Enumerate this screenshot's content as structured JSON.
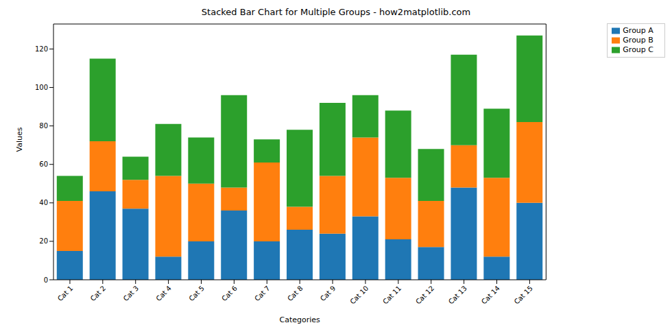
{
  "chart_data": {
    "type": "bar",
    "title": "Stacked Bar Chart for Multiple Groups - how2matplotlib.com",
    "x_label": "Categories",
    "y_label": "Values",
    "categories": [
      "Cat 1",
      "Cat 2",
      "Cat 3",
      "Cat 4",
      "Cat 5",
      "Cat 6",
      "Cat 7",
      "Cat 8",
      "Cat 9",
      "Cat 10",
      "Cat 11",
      "Cat 12",
      "Cat 13",
      "Cat 14",
      "Cat 15"
    ],
    "series": [
      {
        "name": "Group A",
        "color": "#1f77b4",
        "values": [
          15,
          46,
          37,
          12,
          20,
          36,
          20,
          26,
          24,
          33,
          21,
          17,
          48,
          12,
          40
        ]
      },
      {
        "name": "Group B",
        "color": "#ff7f0e",
        "values": [
          26,
          26,
          15,
          42,
          30,
          12,
          41,
          12,
          30,
          41,
          32,
          24,
          22,
          41,
          42
        ]
      },
      {
        "name": "Group C",
        "color": "#2ca02c",
        "values": [
          13,
          43,
          12,
          27,
          24,
          48,
          12,
          40,
          38,
          22,
          35,
          27,
          47,
          36,
          45
        ]
      }
    ],
    "ylim": [
      0,
      133
    ],
    "yticks": [
      0,
      20,
      40,
      60,
      80,
      100,
      120
    ],
    "stacked": true,
    "grid": false,
    "legend": "upper right"
  }
}
